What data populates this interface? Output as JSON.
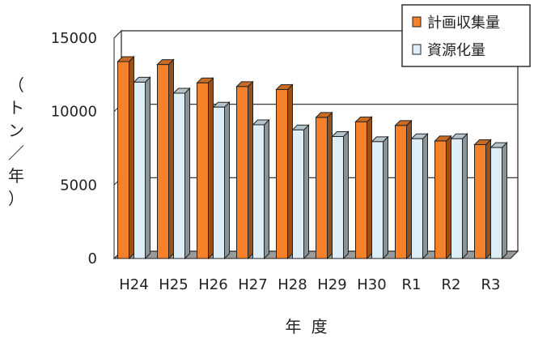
{
  "chart_data": {
    "type": "bar",
    "title": "",
    "xlabel": "年 度",
    "ylabel": "（トン／年）",
    "ylabel_chars": [
      "（",
      "ト",
      "ン",
      "／",
      "年",
      "）"
    ],
    "ylim": [
      0,
      15000
    ],
    "yticks": [
      "0",
      "5000",
      "10000",
      "15000"
    ],
    "grid": true,
    "legend_position": "top-right",
    "categories": [
      "H24",
      "H25",
      "H26",
      "H27",
      "H28",
      "H29",
      "H30",
      "R1",
      "R2",
      "R3"
    ],
    "series": [
      {
        "name": "計画収集量",
        "color": "#f5822a",
        "values": [
          13400,
          13200,
          11950,
          11700,
          11500,
          9600,
          9300,
          9050,
          8000,
          7750
        ]
      },
      {
        "name": "資源化量",
        "color": "#ddeef7",
        "values": [
          12000,
          11250,
          10300,
          9100,
          8750,
          8300,
          7950,
          8150,
          8150,
          7550
        ]
      }
    ]
  }
}
